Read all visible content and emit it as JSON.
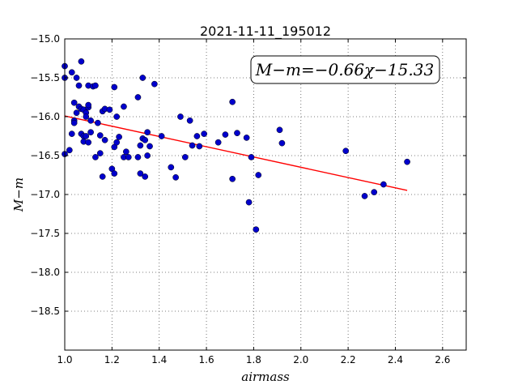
{
  "chart_data": {
    "type": "scatter",
    "title": "2021-11-11_195012",
    "xlabel": "airmass",
    "ylabel": "M−m",
    "xlim": [
      1.0,
      2.7
    ],
    "ylim": [
      -15.0,
      -19.0
    ],
    "y_inverted": true,
    "x_ticks": [
      "1.0",
      "1.2",
      "1.4",
      "1.6",
      "1.8",
      "2.0",
      "2.2",
      "2.4",
      "2.6"
    ],
    "y_ticks": [
      "−15.0",
      "−15.5",
      "−16.0",
      "−16.5",
      "−17.0",
      "−17.5",
      "−18.0",
      "−18.5"
    ],
    "grid": true,
    "annotation": "M−m=−0.66χ−15.33",
    "fit_line": {
      "slope": -0.66,
      "intercept": -15.33,
      "x_range": [
        1.0,
        2.45
      ],
      "color": "#ff0000"
    },
    "point_color": "#0000cc",
    "series": [
      {
        "points": [
          [
            1.0,
            -15.35
          ],
          [
            1.0,
            -15.5
          ],
          [
            1.0,
            -16.48
          ],
          [
            1.02,
            -16.43
          ],
          [
            1.03,
            -15.43
          ],
          [
            1.03,
            -16.22
          ],
          [
            1.04,
            -16.05
          ],
          [
            1.04,
            -16.08
          ],
          [
            1.04,
            -15.82
          ],
          [
            1.05,
            -15.95
          ],
          [
            1.05,
            -15.5
          ],
          [
            1.06,
            -15.6
          ],
          [
            1.06,
            -15.87
          ],
          [
            1.07,
            -15.29
          ],
          [
            1.07,
            -15.9
          ],
          [
            1.07,
            -16.22
          ],
          [
            1.08,
            -16.25
          ],
          [
            1.08,
            -16.32
          ],
          [
            1.08,
            -15.91
          ],
          [
            1.09,
            -15.95
          ],
          [
            1.09,
            -16.0
          ],
          [
            1.09,
            -16.25
          ],
          [
            1.1,
            -15.88
          ],
          [
            1.1,
            -15.85
          ],
          [
            1.1,
            -15.6
          ],
          [
            1.1,
            -16.33
          ],
          [
            1.11,
            -16.05
          ],
          [
            1.11,
            -16.2
          ],
          [
            1.12,
            -15.61
          ],
          [
            1.13,
            -16.52
          ],
          [
            1.13,
            -15.6
          ],
          [
            1.14,
            -16.08
          ],
          [
            1.15,
            -16.47
          ],
          [
            1.15,
            -16.24
          ],
          [
            1.16,
            -16.77
          ],
          [
            1.16,
            -15.93
          ],
          [
            1.17,
            -16.3
          ],
          [
            1.17,
            -15.9
          ],
          [
            1.19,
            -15.91
          ],
          [
            1.2,
            -16.67
          ],
          [
            1.21,
            -16.39
          ],
          [
            1.21,
            -15.62
          ],
          [
            1.21,
            -16.73
          ],
          [
            1.22,
            -16.33
          ],
          [
            1.22,
            -16.0
          ],
          [
            1.23,
            -16.26
          ],
          [
            1.25,
            -15.87
          ],
          [
            1.25,
            -16.52
          ],
          [
            1.26,
            -16.45
          ],
          [
            1.27,
            -16.52
          ],
          [
            1.31,
            -15.75
          ],
          [
            1.31,
            -16.52
          ],
          [
            1.32,
            -16.73
          ],
          [
            1.32,
            -16.37
          ],
          [
            1.33,
            -16.28
          ],
          [
            1.33,
            -15.5
          ],
          [
            1.34,
            -16.77
          ],
          [
            1.34,
            -16.3
          ],
          [
            1.35,
            -16.5
          ],
          [
            1.35,
            -16.2
          ],
          [
            1.36,
            -16.38
          ],
          [
            1.38,
            -15.58
          ],
          [
            1.41,
            -16.25
          ],
          [
            1.45,
            -16.65
          ],
          [
            1.47,
            -16.78
          ],
          [
            1.49,
            -16.0
          ],
          [
            1.51,
            -16.52
          ],
          [
            1.53,
            -16.05
          ],
          [
            1.54,
            -16.37
          ],
          [
            1.56,
            -16.25
          ],
          [
            1.57,
            -16.38
          ],
          [
            1.59,
            -16.22
          ],
          [
            1.65,
            -16.33
          ],
          [
            1.68,
            -16.23
          ],
          [
            1.71,
            -15.81
          ],
          [
            1.71,
            -16.8
          ],
          [
            1.73,
            -16.21
          ],
          [
            1.77,
            -16.27
          ],
          [
            1.78,
            -17.1
          ],
          [
            1.79,
            -16.52
          ],
          [
            1.81,
            -17.45
          ],
          [
            1.82,
            -16.75
          ],
          [
            1.91,
            -16.17
          ],
          [
            1.92,
            -16.34
          ],
          [
            2.19,
            -16.44
          ],
          [
            2.27,
            -17.02
          ],
          [
            2.31,
            -16.97
          ],
          [
            2.35,
            -16.87
          ],
          [
            2.45,
            -16.58
          ]
        ]
      }
    ]
  }
}
